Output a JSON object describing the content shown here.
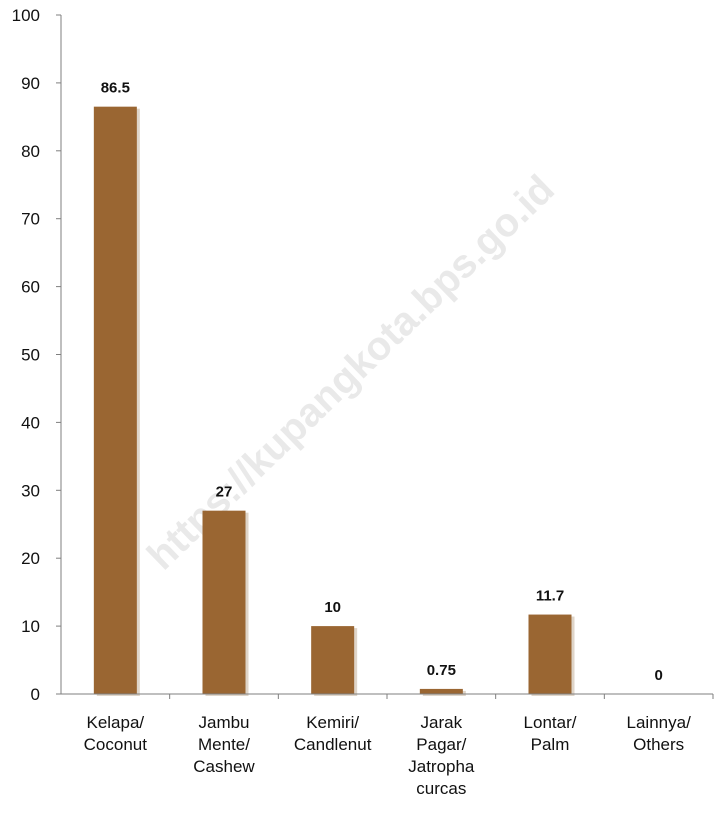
{
  "watermark": "https://kupangkota.bps.go.id",
  "colors": {
    "bar": "#9a6632",
    "axis": "#7f7f7f"
  },
  "chart_data": {
    "type": "bar",
    "categories": [
      [
        "Kelapa/",
        "Coconut"
      ],
      [
        "Jambu",
        "Mente/",
        "Cashew"
      ],
      [
        "Kemiri/",
        "Candlenut"
      ],
      [
        "Jarak",
        "Pagar/",
        "Jatropha",
        "curcas"
      ],
      [
        "Lontar/",
        "Palm"
      ],
      [
        "Lainnya/",
        "Others"
      ]
    ],
    "values": [
      86.5,
      27,
      10,
      0.75,
      11.7,
      0
    ],
    "data_labels": [
      "86.5",
      "27",
      "10",
      "0.75",
      "11.7",
      "0"
    ],
    "ylim": [
      0,
      100
    ],
    "yticks": [
      0,
      10,
      20,
      30,
      40,
      50,
      60,
      70,
      80,
      90,
      100
    ],
    "title": "",
    "xlabel": "",
    "ylabel": "",
    "grid": false,
    "legend": "none"
  }
}
